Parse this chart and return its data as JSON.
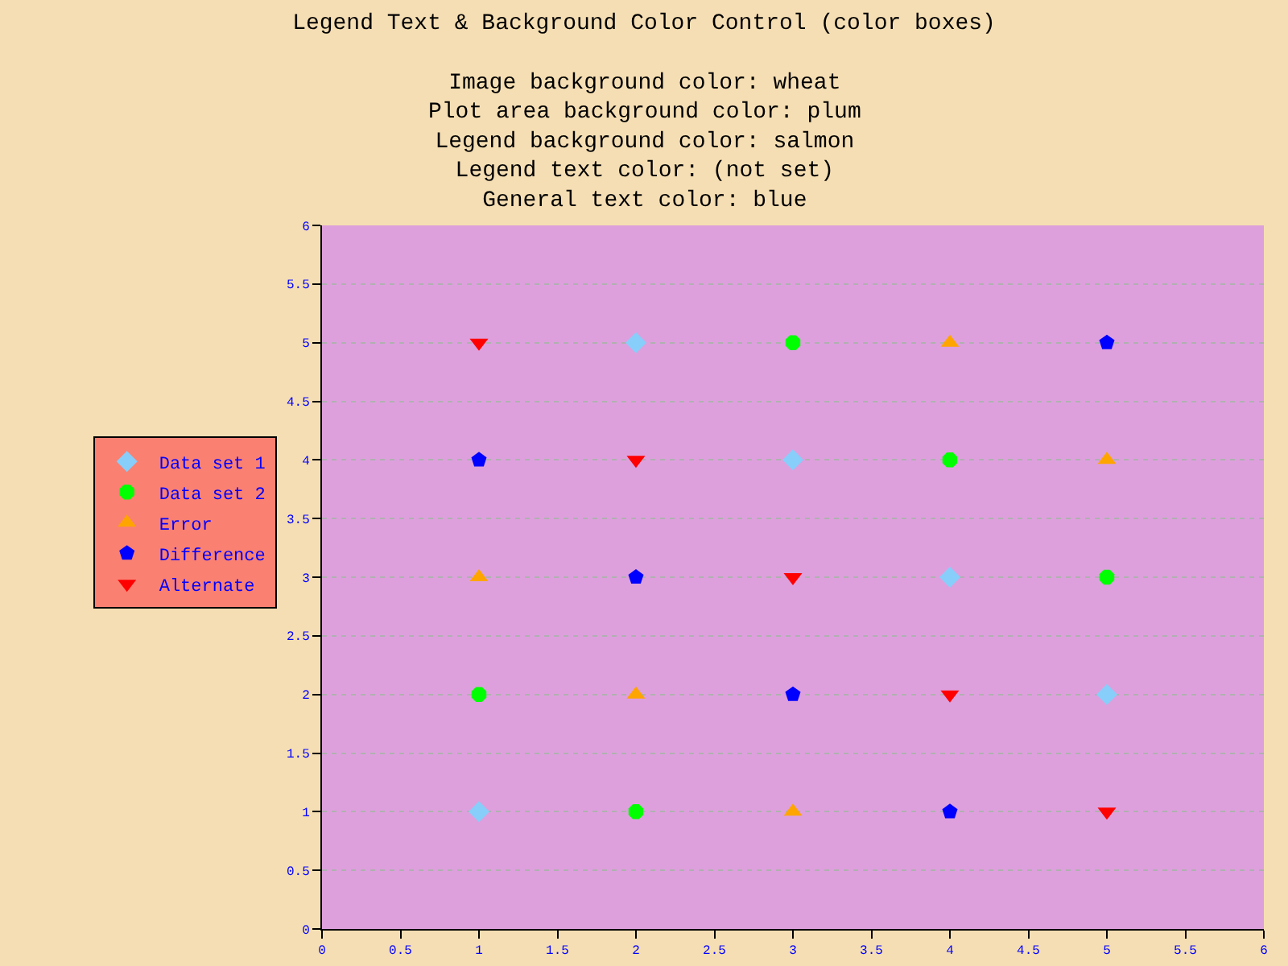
{
  "chart_data": {
    "type": "scatter",
    "title": "Legend Text & Background Color Control (color boxes)",
    "subtitle": "Image background color: wheat\nPlot area background color: plum\nLegend background color: salmon\nLegend text color: (not set)\nGeneral text color: blue",
    "x": [
      1,
      2,
      3,
      4,
      5
    ],
    "series": [
      {
        "name": "Data set 1",
        "color": "#87cefa",
        "marker": "diamond",
        "values": [
          1,
          5,
          4,
          3,
          2
        ]
      },
      {
        "name": "Data set 2",
        "color": "#00ff00",
        "marker": "circle",
        "values": [
          2,
          1,
          5,
          4,
          3
        ]
      },
      {
        "name": "Error",
        "color": "#ffa500",
        "marker": "triangle",
        "values": [
          3,
          2,
          1,
          5,
          4
        ]
      },
      {
        "name": "Difference",
        "color": "#0000ff",
        "values": [
          4,
          3,
          2,
          1,
          5
        ]
      },
      {
        "name": "Alternate",
        "color": "#ff0000",
        "marker": "triangle-down",
        "values": [
          5,
          4,
          3,
          2,
          1
        ]
      }
    ],
    "xlim": [
      0,
      6
    ],
    "xticks": [
      0,
      0.5,
      1,
      1.5,
      2,
      2.5,
      3,
      3.5,
      4,
      4.5,
      5,
      5.5,
      6
    ],
    "ylim": [
      0,
      6
    ],
    "yticks": [
      0,
      0.5,
      1,
      1.5,
      2,
      2.5,
      3,
      3.5,
      4,
      4.5,
      5,
      5.5,
      6
    ],
    "grid": "y",
    "legend": "left"
  }
}
